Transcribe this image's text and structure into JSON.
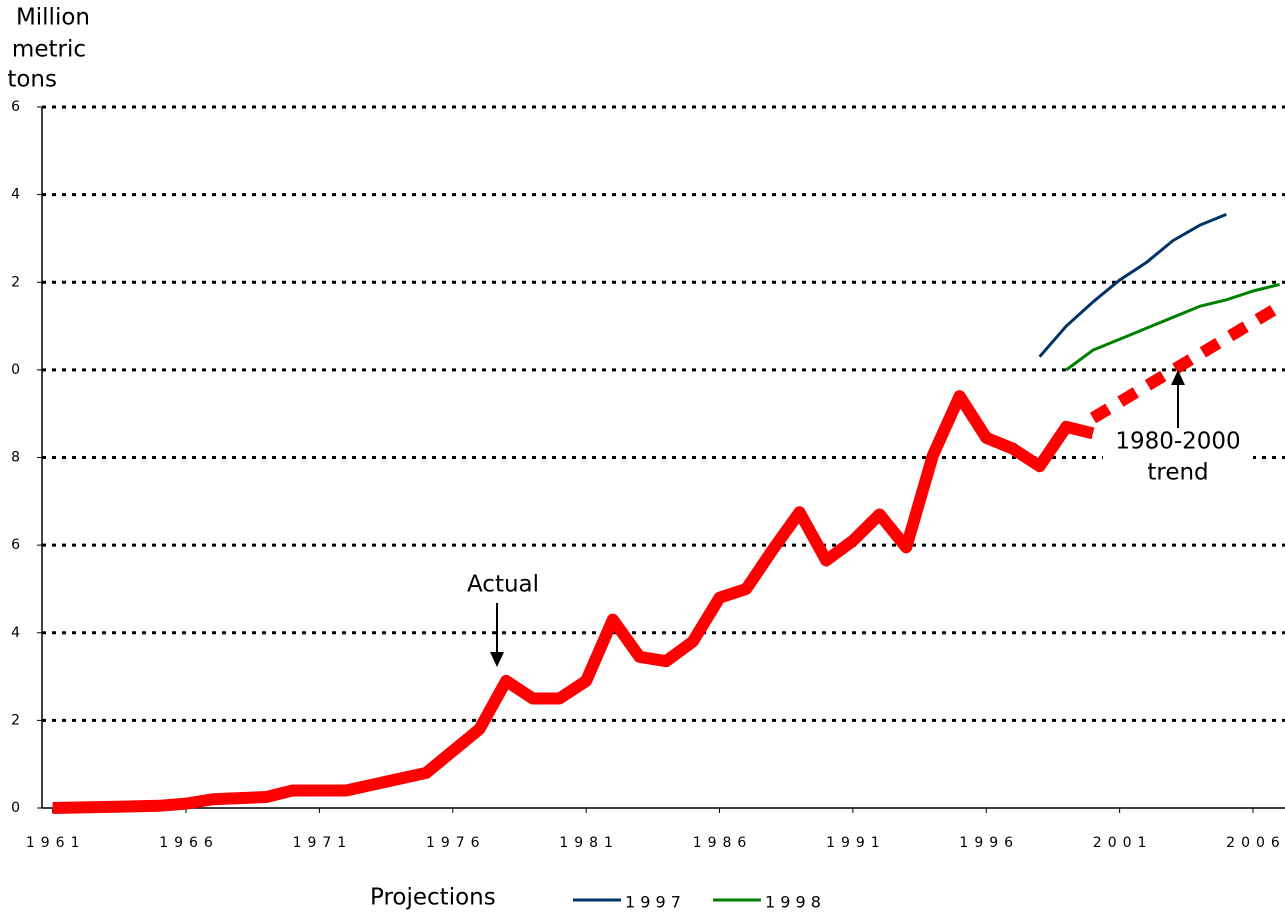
{
  "chart_data": {
    "type": "line",
    "y_label": [
      "Million",
      "metric",
      "tons"
    ],
    "xlim": [
      1960.6,
      2007.2
    ],
    "xticks": [
      1961,
      1966,
      1971,
      1976,
      1981,
      1986,
      1991,
      1996,
      2001,
      2006
    ],
    "ylim": [
      0,
      16
    ],
    "yticks": [
      0,
      2,
      4,
      6,
      8,
      {
        "value": 10,
        "label": "0"
      },
      {
        "value": 12,
        "label": "2"
      },
      {
        "value": 14,
        "label": "4"
      },
      {
        "value": 16,
        "label": "6"
      }
    ],
    "grid": true,
    "actual": {
      "color": "#ff0000",
      "x": [
        1961,
        1965,
        1966,
        1967,
        1969,
        1970,
        1972,
        1975,
        1977,
        1978,
        1979,
        1980,
        1981,
        1982,
        1983,
        1984,
        1985,
        1986,
        1987,
        1988,
        1989,
        1990,
        1991,
        1992,
        1993,
        1994,
        1995,
        1996,
        1997,
        1998,
        1999,
        2000
      ],
      "values": [
        0,
        0.05,
        0.1,
        0.2,
        0.25,
        0.4,
        0.4,
        0.8,
        1.8,
        2.9,
        2.5,
        2.5,
        2.9,
        4.3,
        3.45,
        3.35,
        3.8,
        4.8,
        5.0,
        5.9,
        6.75,
        5.65,
        6.1,
        6.7,
        5.95,
        8.05,
        9.4,
        8.45,
        8.2,
        7.8,
        8.7,
        8.55
      ]
    },
    "trend": {
      "color": "#ff0000",
      "x": [
        2000,
        2007
      ],
      "values": [
        8.9,
        11.45
      ]
    },
    "annotations": [
      "Actual",
      "1980-2000",
      "trend"
    ],
    "legend_title": "Projections",
    "series": [
      {
        "name": "1 9 9 7",
        "color": "#003366",
        "x": [
          1998,
          1999,
          2000,
          2001,
          2002,
          2003,
          2004,
          2005
        ],
        "values": [
          10.3,
          11.0,
          11.55,
          12.05,
          12.45,
          12.95,
          13.3,
          13.55
        ]
      },
      {
        "name": "1 9 9 8",
        "color": "#008000",
        "x": [
          1999,
          2000,
          2001,
          2002,
          2003,
          2004,
          2005,
          2006,
          2007
        ],
        "values": [
          10.0,
          10.45,
          10.7,
          10.95,
          11.2,
          11.45,
          11.6,
          11.8,
          11.95
        ]
      }
    ]
  }
}
